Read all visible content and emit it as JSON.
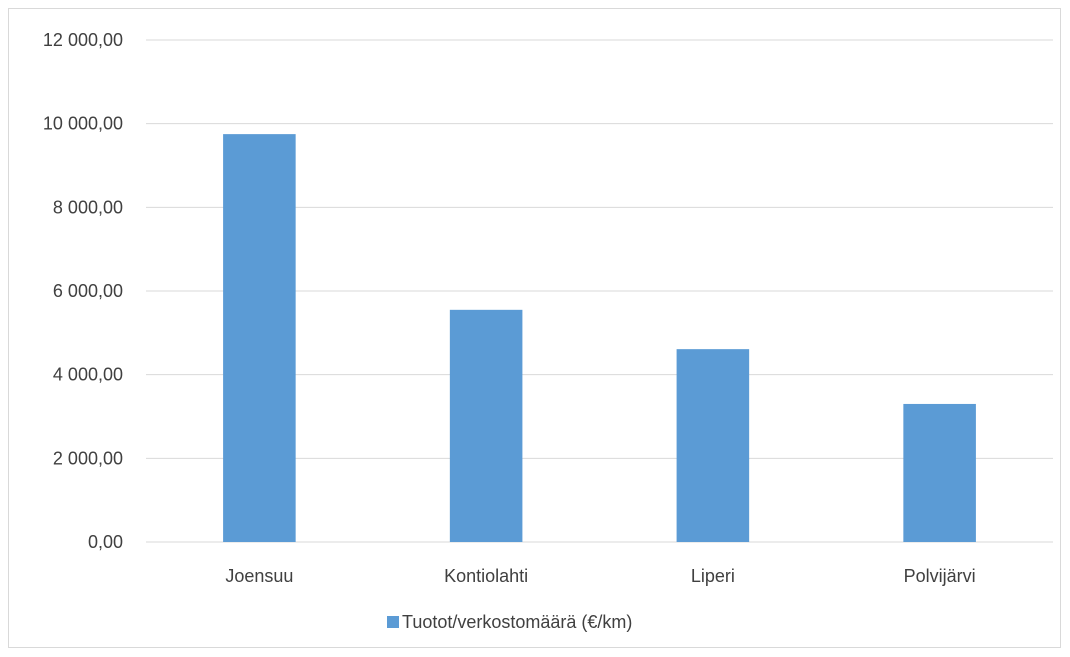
{
  "chart_data": {
    "type": "bar",
    "categories": [
      "Joensuu",
      "Kontiolahti",
      "Liperi",
      "Polvijärvi"
    ],
    "series": [
      {
        "name": "Tuotot/verkostomäärä (€/km)",
        "values": [
          9750,
          5550,
          4610,
          3300
        ],
        "color": "#5b9bd5"
      }
    ],
    "ylim": [
      0,
      12000
    ],
    "yticks": [
      0,
      2000,
      4000,
      6000,
      8000,
      10000,
      12000
    ],
    "ytick_labels": [
      "0,00",
      "2 000,00",
      "4 000,00",
      "6 000,00",
      "8 000,00",
      "10 000,00",
      "12 000,00"
    ],
    "grid": true,
    "legend_position": "bottom",
    "title": "",
    "xlabel": "",
    "ylabel": ""
  }
}
